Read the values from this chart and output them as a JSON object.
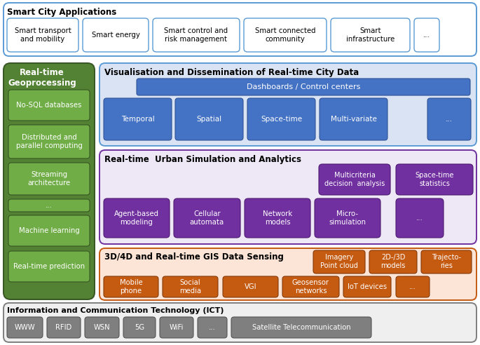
{
  "bg_color": "#ffffff",
  "fig_width": 6.85,
  "fig_height": 4.92,
  "smart_city": {
    "title": "Smart City Applications",
    "box_color": "#ffffff",
    "border_color": "#5b9bd5",
    "title_color": "#000000",
    "items": [
      "Smart transport\nand mobility",
      "Smart energy",
      "Smart control and\nrisk management",
      "Smart connected\ncommunity",
      "Smart\ninfrastructure",
      "..."
    ]
  },
  "ict": {
    "title": "Information and Communication Technology (ICT)",
    "box_color": "#efefef",
    "border_color": "#7f7f7f",
    "title_color": "#000000",
    "items": [
      "WWW",
      "RFID",
      "WSN",
      "5G",
      "WiFi",
      "...",
      "Satellite Telecommunication"
    ],
    "item_color": "#7f7f7f"
  },
  "geoprocessing": {
    "title": "Real-time\nGeoprocessing",
    "box_color": "#548235",
    "border_color": "#375623",
    "title_color": "#ffffff",
    "item_color": "#70ad47",
    "item_border_color": "#375623",
    "item_text_color": "#ffffff",
    "items": [
      "No-SQL databases",
      "Distributed and\nparallel computing",
      "Streaming\narchitecture",
      "...",
      "Machine learning",
      "Real-time prediction"
    ]
  },
  "visualisation": {
    "title": "Visualisation and Dissemination of Real-time City Data",
    "box_color": "#dae3f3",
    "border_color": "#5b9bd5",
    "title_color": "#000000",
    "dashboard_color": "#4472c4",
    "dashboard_text": "Dashboards / Control centers",
    "item_color": "#4472c4",
    "item_border_color": "#2f5496",
    "item_text_color": "#ffffff",
    "items": [
      "Temporal",
      "Spatial",
      "Space-time",
      "Multi-variate",
      "..."
    ]
  },
  "simulation": {
    "title": "Real-time  Urban Simulation and Analytics",
    "box_color": "#ede7f6",
    "border_color": "#7030a0",
    "title_color": "#000000",
    "item_color": "#7030a0",
    "item_border_color": "#4e1a70",
    "item_text_color": "#ffffff",
    "top_items": [
      "Multicriteria\ndecision  analysis",
      "Space-time\nstatistics"
    ],
    "bottom_items": [
      "Agent-based\nmodeling",
      "Cellular\nautomata",
      "Network\nmodels",
      "Micro-\nsimulation",
      "..."
    ]
  },
  "gis": {
    "title": "3D/4D and Real-time GIS Data Sensing",
    "box_color": "#fce4d6",
    "border_color": "#c55a11",
    "title_color": "#000000",
    "item_color": "#c55a11",
    "item_border_color": "#843c0c",
    "item_text_color": "#ffffff",
    "top_items": [
      "Imagery\nPoint cloud",
      "2D-/3D\nmodels",
      "Trajecto-\nries"
    ],
    "bottom_items": [
      "Mobile\nphone",
      "Social\nmedia",
      "VGI",
      "Geosensor\nnetworks",
      "IoT devices",
      "..."
    ]
  }
}
